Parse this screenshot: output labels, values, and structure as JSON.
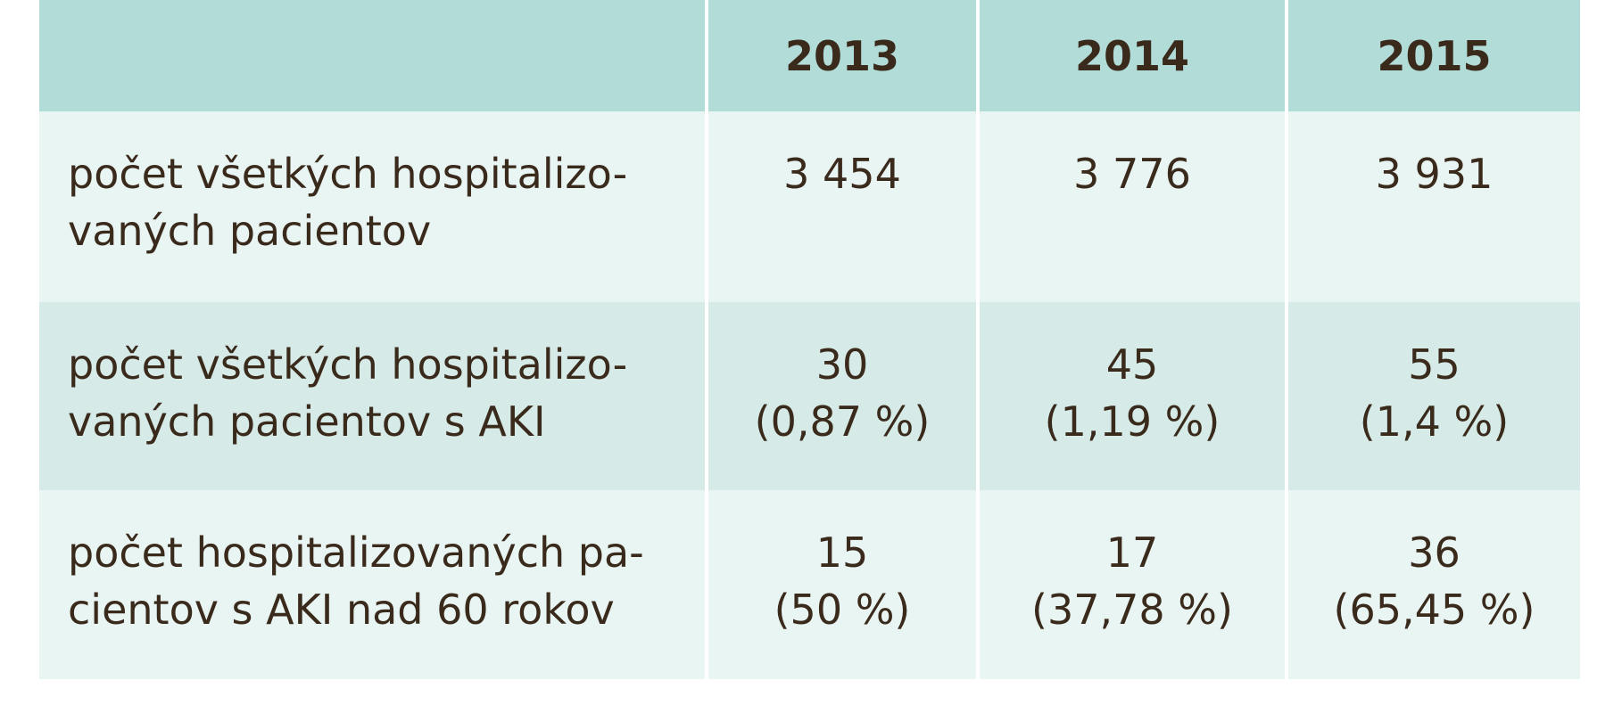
{
  "table": {
    "header": [
      "",
      "2013",
      "2014",
      "2015"
    ],
    "rows": [
      {
        "label_line1": "počet všetkých hospitalizo-",
        "label_line2": "vaných pacientov",
        "cells": [
          {
            "count": "3 454",
            "pct": ""
          },
          {
            "count": "3 776",
            "pct": ""
          },
          {
            "count": "3 931",
            "pct": ""
          }
        ]
      },
      {
        "label_line1": "počet všetkých hospitalizo-",
        "label_line2": "vaných pacientov s AKI",
        "cells": [
          {
            "count": "30",
            "pct": "(0,87 %)"
          },
          {
            "count": "45",
            "pct": "(1,19 %)"
          },
          {
            "count": "55",
            "pct": "(1,4 %)"
          }
        ]
      },
      {
        "label_line1": "počet hospitalizovaných pa-",
        "label_line2": "cientov s AKI nad 60 rokov",
        "cells": [
          {
            "count": "15",
            "pct": "(50 %)"
          },
          {
            "count": "17",
            "pct": "(37,78 %)"
          },
          {
            "count": "36",
            "pct": "(65,45 %)"
          }
        ]
      }
    ]
  },
  "colors": {
    "header_bg": "#b2dcd8",
    "row_light_bg": "#e9f5f3",
    "row_dark_bg": "#d6ebe8",
    "text": "#3a2a1c"
  }
}
